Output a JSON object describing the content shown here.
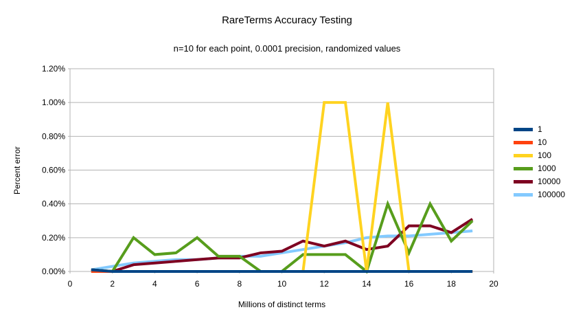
{
  "title": "RareTerms Accuracy Testing",
  "subtitle": "n=10 for each point, 0.0001 precision, randomized values",
  "chart_data": {
    "type": "line",
    "xlabel": "Millions of distinct terms",
    "ylabel": "Percent error",
    "xlim": [
      0,
      20
    ],
    "ylim": [
      0,
      1.2
    ],
    "grid": "horizontal",
    "legend_position": "right",
    "x_ticks": [
      0,
      2,
      4,
      6,
      8,
      10,
      12,
      14,
      16,
      18,
      20
    ],
    "y_ticks": [
      {
        "value": 0.0,
        "label": "0.00%"
      },
      {
        "value": 0.2,
        "label": "0.20%"
      },
      {
        "value": 0.4,
        "label": "0.40%"
      },
      {
        "value": 0.6,
        "label": "0.60%"
      },
      {
        "value": 0.8,
        "label": "0.80%"
      },
      {
        "value": 1.0,
        "label": "1.00%"
      },
      {
        "value": 1.2,
        "label": "1.20%"
      }
    ],
    "x": [
      1,
      2,
      3,
      4,
      5,
      6,
      7,
      8,
      9,
      10,
      11,
      12,
      13,
      14,
      15,
      16,
      17,
      18,
      19
    ],
    "series": [
      {
        "name": "1",
        "color": "#004586",
        "values": [
          0.01,
          0.0,
          0.0,
          0.0,
          0.0,
          0.0,
          0.0,
          0.0,
          0.0,
          0.0,
          0.0,
          0.0,
          0.0,
          0.0,
          0.0,
          0.0,
          0.0,
          0.0,
          0.0
        ]
      },
      {
        "name": "10",
        "color": "#ff420e",
        "values": [
          0.0,
          0.0,
          0.0,
          0.0,
          0.0,
          0.0,
          0.0,
          0.0,
          0.0,
          0.0,
          0.0,
          0.0,
          0.0,
          0.0,
          0.0,
          0.0,
          0.0,
          0.0,
          0.0
        ]
      },
      {
        "name": "100",
        "color": "#ffd320",
        "values": [
          0.0,
          0.0,
          0.0,
          0.0,
          0.0,
          0.0,
          0.0,
          0.0,
          0.0,
          0.0,
          0.0,
          1.0,
          1.0,
          0.0,
          1.0,
          0.0,
          0.0,
          0.0,
          0.0
        ]
      },
      {
        "name": "1000",
        "color": "#579d1c",
        "values": [
          0.01,
          0.0,
          0.2,
          0.1,
          0.11,
          0.2,
          0.09,
          0.09,
          0.0,
          0.0,
          0.1,
          0.1,
          0.1,
          0.0,
          0.4,
          0.11,
          0.4,
          0.18,
          0.3
        ]
      },
      {
        "name": "10000",
        "color": "#7e0021",
        "values": [
          0.01,
          0.0,
          0.04,
          0.05,
          0.06,
          0.07,
          0.08,
          0.08,
          0.11,
          0.12,
          0.18,
          0.15,
          0.18,
          0.13,
          0.15,
          0.27,
          0.27,
          0.23,
          0.31
        ]
      },
      {
        "name": "100000",
        "color": "#83caff",
        "values": [
          0.01,
          0.03,
          0.05,
          0.06,
          0.07,
          0.07,
          0.08,
          0.09,
          0.09,
          0.11,
          0.13,
          0.15,
          0.17,
          0.2,
          0.21,
          0.21,
          0.22,
          0.23,
          0.24
        ]
      }
    ]
  },
  "style": {
    "grid_color": "#b3b3b3",
    "text_color": "#000000",
    "line_width": 4
  }
}
